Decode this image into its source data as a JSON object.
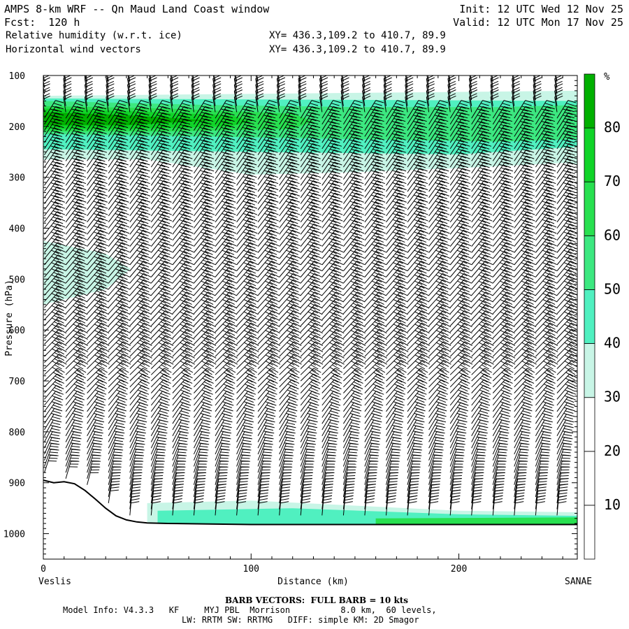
{
  "header": {
    "title": "AMPS 8-km WRF -- Qn Maud Land Coast window",
    "fcst": "Fcst:  120 h",
    "field1": "Relative humidity (w.r.t. ice)",
    "field2": "Horizontal wind vectors",
    "init": "Init: 12 UTC Wed 12 Nov 25",
    "valid": "Valid: 12 UTC Mon 17 Nov 25",
    "xy1": "XY= 436.3,109.2 to 410.7, 89.9",
    "xy2": "XY= 436.3,109.2 to 410.7, 89.9"
  },
  "footer": {
    "barb_note": "BARB VECTORS:  FULL BARB = 10 kts",
    "model_line1": "Model Info: V4.3.3   KF     MYJ PBL  Morrison          8.0 km,  60 levels,",
    "model_line2": "LW: RRTM SW: RRTMG   DIFF: simple KM: 2D Smagor"
  },
  "colors": {
    "rh_30_40": "#c8f5e6",
    "rh_40_50": "#50f0c0",
    "rh_50_60": "#3ce880",
    "rh_60_70": "#28e050",
    "rh_70_80": "#10d428",
    "rh_80_plus": "#00b000",
    "terrain": "#ffffff"
  },
  "chart_data": {
    "type": "heatmap",
    "title": "Relative humidity (w.r.t. ice)",
    "xlabel": "Distance (km)",
    "ylabel": "Pressure (hPa)",
    "xlim": [
      0,
      257
    ],
    "ylim": [
      1050,
      100
    ],
    "x_ticks": [
      0,
      100,
      200
    ],
    "y_ticks": [
      100,
      200,
      300,
      400,
      500,
      600,
      700,
      800,
      900,
      1000
    ],
    "start_label": "Veslis",
    "end_label": "SANAE",
    "colorbar": {
      "unit": "%",
      "levels": [
        10,
        20,
        30,
        40,
        50,
        60,
        70,
        80
      ],
      "colors": [
        "#ffffff",
        "#ffffff",
        "#ffffff",
        "#c8f5e6",
        "#50f0c0",
        "#3ce880",
        "#28e050",
        "#10d428",
        "#00b000"
      ]
    },
    "rh_regions": [
      {
        "level": "30-40",
        "x": [
          0,
          257,
          257,
          250,
          200,
          150,
          100,
          50,
          0
        ],
        "p": [
          140,
          130,
          275,
          272,
          282,
          290,
          295,
          265,
          265
        ]
      },
      {
        "level": "40-50",
        "x": [
          0,
          257,
          257,
          200,
          100,
          0
        ],
        "p": [
          145,
          150,
          240,
          255,
          250,
          245
        ]
      },
      {
        "level": "50-60",
        "x": [
          0,
          80,
          150,
          220,
          257,
          257,
          220,
          150,
          80,
          0
        ],
        "p": [
          150,
          158,
          162,
          162,
          158,
          225,
          230,
          225,
          220,
          215
        ]
      },
      {
        "level": "60-70",
        "x": [
          0,
          60,
          120,
          130,
          120,
          60,
          0
        ],
        "p": [
          160,
          165,
          175,
          190,
          205,
          210,
          210
        ]
      },
      {
        "level": "70-80",
        "x": [
          0,
          40,
          90,
          100,
          90,
          40,
          0
        ],
        "p": [
          165,
          170,
          178,
          190,
          200,
          205,
          205
        ]
      },
      {
        "level": "80+",
        "x": [
          0,
          40,
          80,
          40,
          0
        ],
        "p": [
          172,
          178,
          188,
          198,
          198
        ]
      },
      {
        "level": "30-40",
        "x": [
          0,
          30,
          42,
          30,
          0
        ],
        "p": [
          425,
          450,
          480,
          520,
          550
        ]
      },
      {
        "level": "30-40",
        "x": [
          50,
          100,
          150,
          200,
          257,
          257,
          50
        ],
        "p": [
          940,
          935,
          945,
          955,
          958,
          985,
          985
        ]
      },
      {
        "level": "40-50",
        "x": [
          55,
          120,
          200,
          257,
          257,
          55
        ],
        "p": [
          955,
          950,
          962,
          965,
          985,
          985
        ]
      },
      {
        "level": "60-70",
        "x": [
          160,
          257,
          257,
          160
        ],
        "p": [
          970,
          968,
          985,
          985
        ]
      }
    ],
    "terrain_surface": {
      "x": [
        0,
        5,
        10,
        15,
        20,
        25,
        30,
        35,
        40,
        45,
        50,
        60,
        80,
        100,
        150,
        200,
        257
      ],
      "p": [
        895,
        900,
        898,
        902,
        915,
        932,
        950,
        965,
        973,
        977,
        979,
        980,
        981,
        982,
        982,
        982,
        982
      ]
    },
    "wind_barbs_note": "FULL BARB = 10 kts"
  }
}
